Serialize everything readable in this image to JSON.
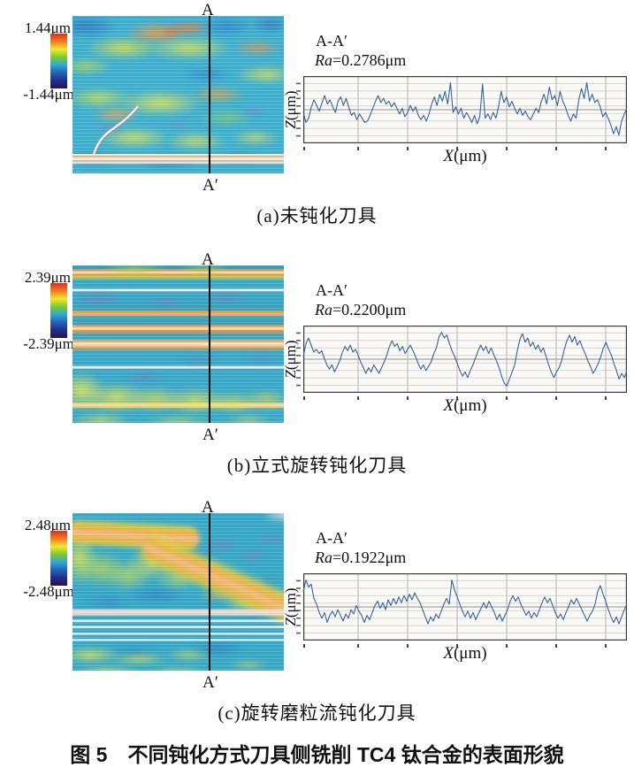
{
  "figure_title": "图 5　不同钝化方式刀具侧铣削 TC4 钛合金的表面形貌",
  "colorbar_colors": [
    "#d92f1e",
    "#f07c22",
    "#f2e92e",
    "#7cc832",
    "#2fa8d8",
    "#2a60b8",
    "#1e2f8a",
    "#2a1050"
  ],
  "panels": [
    {
      "key": "a",
      "scale_max": "1.44μm",
      "scale_min": "-1.44μm",
      "section_top": "A",
      "section_bottom": "A′",
      "caption": "(a)未钝化刀具",
      "profile_title": "A-A′",
      "ra_italic": "Ra",
      "ra_rest": "=0.2786μm",
      "z_italic": "Z",
      "z_rest": "(μm)",
      "x_italic": "X",
      "x_rest": "(μm)"
    },
    {
      "key": "b",
      "scale_max": "2.39μm",
      "scale_min": "-2.39μm",
      "section_top": "A",
      "section_bottom": "A′",
      "caption": "(b)立式旋转钝化刀具",
      "profile_title": "A-A′",
      "ra_italic": "Ra",
      "ra_rest": "=0.2200μm",
      "z_italic": "Z",
      "z_rest": "(μm)",
      "x_italic": "X",
      "x_rest": "(μm)"
    },
    {
      "key": "c",
      "scale_max": "2.48μm",
      "scale_min": "-2.48μm",
      "section_top": "A",
      "section_bottom": "A′",
      "caption": "(c)旋转磨粒流钝化刀具",
      "profile_title": "A-A′",
      "ra_italic": "Ra",
      "ra_rest": "=0.1922μm",
      "z_italic": "Z",
      "z_rest": "(μm)",
      "x_italic": "X",
      "x_rest": "(μm)"
    }
  ],
  "chart_data": [
    {
      "type": "line",
      "title": "A-A′",
      "ra_um": 0.2786,
      "xlabel": "X(μm)",
      "ylabel": "Z(μm)",
      "z_range_um": [
        -1.44,
        1.44
      ],
      "grid": true,
      "line_color": "#33629f",
      "profile_points_norm": [
        -0.1,
        -0.45,
        -0.3,
        0.1,
        0.35,
        0.15,
        -0.05,
        0.25,
        0.5,
        0.2,
        0.35,
        0.1,
        -0.1,
        0.3,
        0.45,
        0.15,
        0.4,
        0.1,
        -0.2,
        -0.1,
        -0.35,
        -0.15,
        -0.3,
        -0.45,
        -0.4,
        -0.2,
        0.05,
        0.3,
        0.5,
        0.25,
        0.4,
        0.2,
        0.3,
        0.1,
        0.25,
        0.05,
        -0.15,
        0.05,
        -0.25,
        -0.1,
        0.15,
        -0.05,
        0.1,
        -0.2,
        -0.35,
        -0.2,
        -0.4,
        -0.15,
        0.2,
        0.45,
        0.15,
        0.55,
        0.3,
        0.65,
        0.2,
        0.95,
        -0.1,
        0.1,
        -0.15,
        0.05,
        -0.3,
        -0.1,
        -0.25,
        -0.45,
        -0.2,
        -0.5,
        -0.25,
        0.9,
        -0.3,
        -0.15,
        -0.35,
        -0.1,
        -0.3,
        0.1,
        0.65,
        0.25,
        0.45,
        0.1,
        0.3,
        0.05,
        -0.15,
        0.05,
        -0.2,
        -0.05,
        -0.25,
        -0.35,
        -0.15,
        0.05,
        -0.1,
        0.3,
        0.55,
        0.2,
        0.8,
        0.35,
        0.5,
        0.15,
        0.65,
        0.3,
        0.1,
        -0.2,
        -0.4,
        -0.15,
        -0.3,
        0.35,
        0.75,
        0.4,
        0.95,
        0.3,
        0.55,
        0.25,
        0.35,
        0.1,
        -0.25,
        -0.1,
        -0.3,
        -0.55,
        -0.85,
        -0.6,
        -0.9,
        -0.4,
        -0.15,
        0.05
      ]
    },
    {
      "type": "line",
      "title": "A-A′",
      "ra_um": 0.22,
      "xlabel": "X(μm)",
      "ylabel": "Z(μm)",
      "z_range_um": [
        -2.39,
        2.39
      ],
      "grid": true,
      "line_color": "#33629f",
      "profile_points_norm": [
        0.1,
        0.55,
        0.75,
        0.5,
        0.25,
        0.35,
        0.2,
        0.3,
        0.05,
        -0.2,
        -0.35,
        -0.2,
        -0.45,
        -0.25,
        -0.05,
        0.25,
        0.45,
        0.3,
        0.5,
        0.25,
        0.35,
        0.15,
        -0.1,
        -0.3,
        -0.5,
        -0.3,
        -0.45,
        -0.2,
        -0.35,
        -0.5,
        -0.3,
        -0.1,
        0.15,
        0.45,
        0.65,
        0.45,
        0.55,
        0.3,
        0.45,
        0.2,
        0.35,
        0.5,
        0.3,
        0.1,
        -0.15,
        -0.35,
        -0.2,
        -0.4,
        -0.25,
        -0.1,
        0.2,
        0.4,
        0.8,
        0.95,
        0.75,
        0.85,
        0.55,
        0.3,
        0.1,
        -0.15,
        -0.4,
        -0.6,
        -0.45,
        -0.65,
        -0.4,
        -0.2,
        0.05,
        0.3,
        0.5,
        0.3,
        0.45,
        0.2,
        0.4,
        0.15,
        -0.05,
        -0.3,
        -0.6,
        -0.85,
        -0.95,
        -0.7,
        -0.45,
        -0.2,
        0.3,
        0.7,
        0.9,
        0.6,
        0.75,
        0.45,
        0.6,
        0.35,
        0.5,
        0.25,
        0.4,
        0.1,
        -0.2,
        -0.45,
        -0.65,
        -0.45,
        -0.3,
        -0.05,
        0.35,
        0.65,
        0.85,
        0.6,
        0.8,
        0.5,
        0.65,
        0.4,
        0.2,
        -0.05,
        -0.25,
        -0.5,
        -0.35,
        -0.15,
        0.1,
        0.4,
        0.6,
        0.35,
        0.15,
        -0.15,
        -0.4,
        -0.7,
        -0.5,
        -0.65,
        -0.4
      ]
    },
    {
      "type": "line",
      "title": "A-A′",
      "ra_um": 0.1922,
      "xlabel": "X(μm)",
      "ylabel": "Z(μm)",
      "z_range_um": [
        -2.48,
        2.48
      ],
      "grid": true,
      "line_color": "#33629f",
      "profile_points_norm": [
        0.55,
        0.95,
        0.7,
        0.8,
        0.3,
        0.1,
        -0.2,
        -0.4,
        -0.2,
        -0.55,
        -0.3,
        -0.15,
        -0.35,
        -0.1,
        -0.3,
        -0.5,
        -0.25,
        -0.4,
        -0.1,
        -0.25,
        0.05,
        -0.15,
        -0.3,
        -0.55,
        -0.3,
        -0.45,
        -0.2,
        0.05,
        0.2,
        -0.05,
        0.15,
        -0.1,
        0.25,
        0.05,
        0.3,
        0.1,
        0.35,
        0.15,
        0.4,
        0.2,
        0.45,
        0.25,
        0.5,
        0.3,
        0.15,
        -0.1,
        -0.35,
        -0.6,
        -0.35,
        -0.5,
        -0.25,
        -0.4,
        -0.15,
        0.1,
        0.3,
        0.1,
        0.95,
        0.6,
        0.35,
        0.1,
        -0.15,
        -0.35,
        -0.15,
        -0.4,
        -0.2,
        -0.45,
        -0.25,
        -0.05,
        0.15,
        -0.05,
        0.2,
        0,
        -0.2,
        -0.45,
        -0.25,
        -0.5,
        -0.3,
        -0.1,
        0.2,
        0.4,
        0.2,
        0.35,
        0.1,
        -0.1,
        -0.3,
        -0.15,
        -0.4,
        -0.2,
        -0.35,
        -0.1,
        0.15,
        0.35,
        0.15,
        0.3,
        0.05,
        -0.2,
        -0.4,
        -0.25,
        -0.45,
        -0.2,
        0,
        0.25,
        0.1,
        0.3,
        0.1,
        -0.1,
        -0.3,
        -0.5,
        -0.3,
        -0.15,
        0.1,
        0.55,
        0.75,
        0.45,
        0.2,
        -0.1,
        -0.35,
        -0.55,
        -0.35,
        -0.6,
        -0.35,
        -0.1,
        0.1
      ]
    }
  ]
}
